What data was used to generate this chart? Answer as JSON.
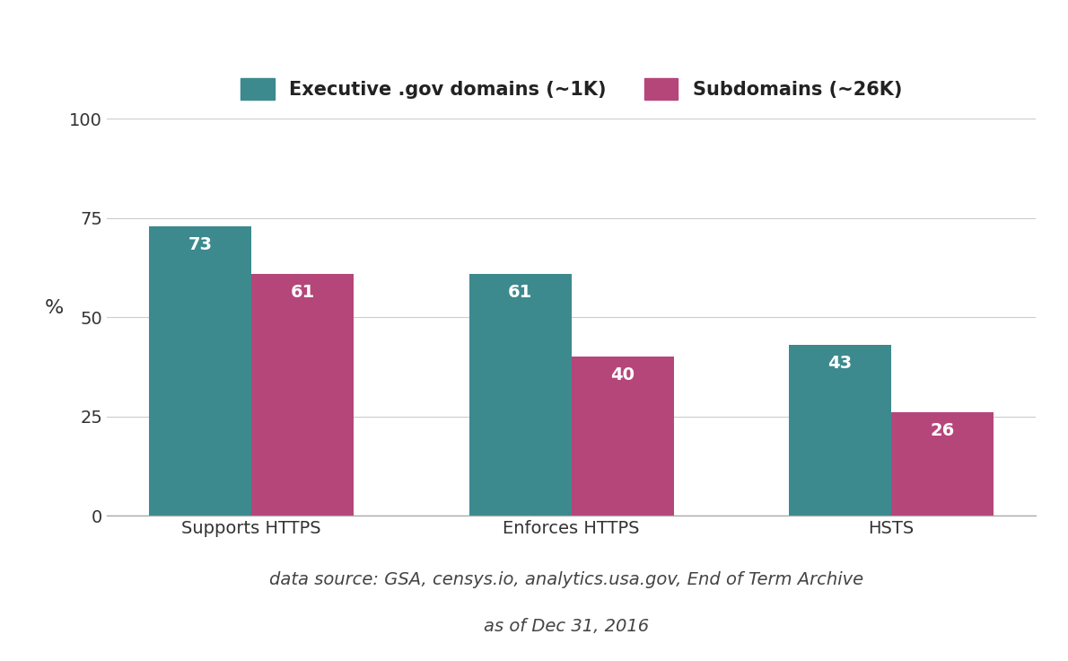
{
  "categories": [
    "Supports HTTPS",
    "Enforces HTTPS",
    "HSTS"
  ],
  "domains_values": [
    73,
    61,
    43
  ],
  "subdomains_values": [
    61,
    40,
    26
  ],
  "domain_color": "#3d8a8e",
  "subdomain_color": "#b5467a",
  "ylabel": "%",
  "ylim": [
    0,
    100
  ],
  "yticks": [
    0,
    25,
    50,
    75,
    100
  ],
  "legend_label_domains": "Executive .gov domains (~1K)",
  "legend_label_subdomains": "Subdomains (~26K)",
  "caption_line1": "data source: GSA, censys.io, analytics.usa.gov, End of Term Archive",
  "caption_line2": "as of Dec 31, 2016",
  "bar_width": 0.32,
  "tick_fontsize": 14,
  "legend_fontsize": 15,
  "value_label_fontsize": 14,
  "caption_fontsize": 14,
  "background_color": "#ffffff",
  "grid_color": "#cccccc"
}
